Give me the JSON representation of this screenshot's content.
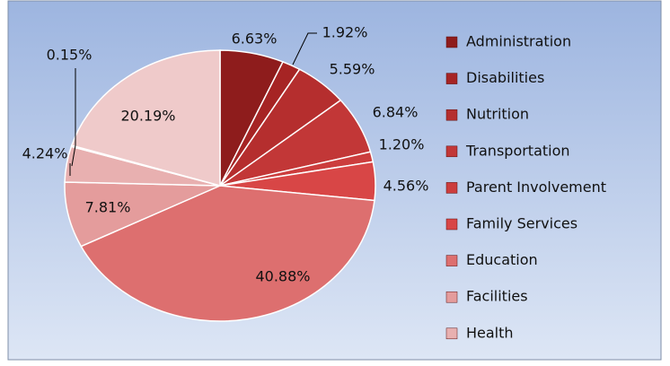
{
  "chart_data": {
    "type": "pie",
    "categories": [
      "Administration",
      "Disabilities",
      "Nutrition",
      "Transportation",
      "Parent Involvement",
      "Family Services",
      "Education",
      "Facilities",
      "Health",
      null,
      null
    ],
    "values": [
      6.63,
      1.92,
      5.59,
      6.84,
      1.2,
      4.56,
      40.88,
      7.81,
      4.24,
      0.15,
      20.19
    ],
    "value_labels": [
      "6.63%",
      "1.92%",
      "5.59%",
      "6.84%",
      "1.20%",
      "4.56%",
      "40.88%",
      "7.81%",
      "4.24%",
      "0.15%",
      "20.19%"
    ],
    "colors": [
      "#8e1c1c",
      "#a62424",
      "#b52e2e",
      "#c23737",
      "#cc3d3d",
      "#d84646",
      "#dd6f6f",
      "#e49c9c",
      "#e8b0b0",
      "#ebbcbc",
      "#efcaca"
    ],
    "legend": "right"
  }
}
